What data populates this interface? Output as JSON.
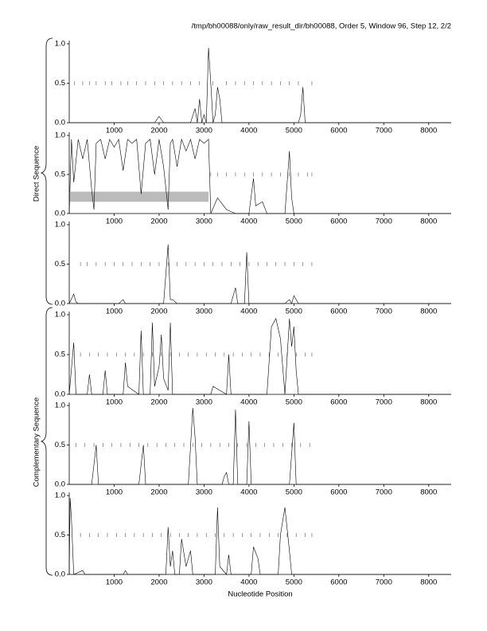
{
  "title": "/tmp/bh00088/only/raw_result_dir/bh00088, Order 5, Window 96, Step 12, 2/2",
  "xlabel": "Nucleotide Position",
  "groups": [
    "Direct Sequence",
    "Complementary Sequence"
  ],
  "chart_data": [
    {
      "type": "line",
      "color": "#000",
      "xlim": [
        0,
        8500
      ],
      "ylim": [
        0,
        1
      ],
      "xticks": [
        1000,
        2000,
        3000,
        4000,
        5000,
        6000,
        7000,
        8000
      ],
      "yticks": [
        {
          "value": 0,
          "label": "0.0"
        },
        {
          "value": 0.5,
          "label": "0.5"
        },
        {
          "value": 1,
          "label": "1.0"
        }
      ],
      "x": [
        0,
        1900,
        2000,
        2100,
        2700,
        2800,
        2850,
        2900,
        2950,
        3000,
        3050,
        3100,
        3150,
        3200,
        3250,
        3300,
        3350,
        3400,
        5100,
        5150,
        5200,
        5250,
        8500
      ],
      "values": [
        0,
        0,
        0.08,
        0,
        0,
        0.18,
        0,
        0.3,
        0,
        0.1,
        0,
        0.95,
        0.5,
        0,
        0.1,
        0.45,
        0.3,
        0,
        0,
        0.1,
        0.45,
        0,
        0
      ],
      "marks": {
        "y": 0.5,
        "x": [
          120,
          300,
          450,
          600,
          800,
          950,
          1150,
          1300,
          1500,
          1700,
          1900,
          2100,
          2300,
          2500,
          2700,
          2900,
          3200,
          3500,
          3700,
          3900,
          4100,
          4300,
          4500,
          4700,
          4900,
          5100,
          5400
        ]
      }
    },
    {
      "type": "line",
      "color": "#000",
      "xlim": [
        0,
        8500
      ],
      "ylim": [
        0,
        1
      ],
      "xticks": [
        1000,
        2000,
        3000,
        4000,
        5000,
        6000,
        7000,
        8000
      ],
      "yticks": [
        {
          "value": 0,
          "label": "0.0"
        },
        {
          "value": 0.5,
          "label": "0.5"
        },
        {
          "value": 1,
          "label": "1.0"
        }
      ],
      "x": [
        0,
        50,
        100,
        200,
        300,
        400,
        500,
        550,
        600,
        700,
        800,
        900,
        1000,
        1100,
        1200,
        1300,
        1400,
        1500,
        1600,
        1700,
        1800,
        1900,
        2000,
        2100,
        2200,
        2250,
        2300,
        2400,
        2500,
        2600,
        2700,
        2800,
        2900,
        3000,
        3100,
        3150,
        3300,
        3500,
        3700,
        4000,
        4100,
        4150,
        4300,
        4400,
        4800,
        4900,
        4950,
        5000,
        8500
      ],
      "values": [
        0,
        0.95,
        0.4,
        0.95,
        0.7,
        0.95,
        0.3,
        0.05,
        0.9,
        0.95,
        0.7,
        0.95,
        0.85,
        0.95,
        0.55,
        0.95,
        0.9,
        0.95,
        0.25,
        0.9,
        0.95,
        0.5,
        0.95,
        0.6,
        0.05,
        0.9,
        0.95,
        0.6,
        0.95,
        0.8,
        0.95,
        0.7,
        0.95,
        0.9,
        0.95,
        0,
        0.2,
        0.05,
        0,
        0,
        0.45,
        0.1,
        0.15,
        0,
        0,
        0.8,
        0.2,
        0,
        0
      ],
      "band": {
        "x": [
          0,
          3100
        ],
        "y": [
          0.15,
          0.28
        ]
      },
      "marks": {
        "y": 0.5,
        "x": [
          3150,
          3300,
          3500,
          3700,
          3900,
          4100,
          4300,
          4500,
          4700,
          4900,
          5100,
          5300,
          5400
        ]
      }
    },
    {
      "type": "line",
      "color": "#000",
      "xlim": [
        0,
        8500
      ],
      "ylim": [
        0,
        1
      ],
      "xticks": [
        1000,
        2000,
        3000,
        4000,
        5000,
        6000,
        7000,
        8000
      ],
      "yticks": [
        {
          "value": 0,
          "label": "0.0"
        },
        {
          "value": 0.5,
          "label": "0.5"
        },
        {
          "value": 1,
          "label": "1.0"
        }
      ],
      "x": [
        0,
        100,
        150,
        200,
        1100,
        1200,
        1250,
        2100,
        2200,
        2250,
        2300,
        2400,
        3600,
        3700,
        3750,
        3900,
        3950,
        4000,
        4800,
        4900,
        4950,
        5000,
        5100,
        8500
      ],
      "values": [
        0,
        0.12,
        0.02,
        0,
        0,
        0.05,
        0,
        0,
        0.75,
        0.05,
        0.05,
        0,
        0,
        0.2,
        0,
        0,
        0.65,
        0,
        0,
        0.05,
        0,
        0.1,
        0,
        0
      ],
      "marks": {
        "y": 0.5,
        "x": [
          250,
          400,
          600,
          800,
          1000,
          1200,
          1400,
          1600,
          1800,
          2000,
          2200,
          2400,
          2600,
          2800,
          3000,
          3200,
          3400,
          3600,
          3800,
          4000,
          4200,
          4400,
          4600,
          4800,
          5000,
          5200,
          5400
        ]
      }
    },
    {
      "type": "line",
      "color": "#000",
      "xlim": [
        0,
        8500
      ],
      "ylim": [
        0,
        1
      ],
      "xticks": [
        1000,
        2000,
        3000,
        4000,
        5000,
        6000,
        7000,
        8000
      ],
      "yticks": [
        {
          "value": 0,
          "label": "0.0"
        },
        {
          "value": 0.5,
          "label": "0.5"
        },
        {
          "value": 1,
          "label": "1.0"
        }
      ],
      "x": [
        0,
        100,
        150,
        400,
        450,
        500,
        750,
        800,
        850,
        1200,
        1250,
        1300,
        1550,
        1600,
        1650,
        1800,
        1850,
        1900,
        2000,
        2050,
        2100,
        2200,
        2250,
        2300,
        3150,
        3200,
        3500,
        3550,
        3600,
        4400,
        4500,
        4600,
        4700,
        4800,
        4900,
        4950,
        5000,
        5050,
        5100,
        8500
      ],
      "values": [
        0,
        0.65,
        0,
        0,
        0.25,
        0,
        0,
        0.3,
        0,
        0,
        0.4,
        0.1,
        0,
        0.8,
        0,
        0,
        0.9,
        0.1,
        0.35,
        0.75,
        0.2,
        0.05,
        0.9,
        0,
        0,
        0.1,
        0,
        0.5,
        0,
        0,
        0.85,
        0.95,
        0.7,
        0,
        0.95,
        0.6,
        0.85,
        0.3,
        0,
        0
      ],
      "marks": {
        "y": 0.5,
        "x": [
          250,
          450,
          650,
          850,
          1050,
          1250,
          1450,
          1650,
          1850,
          2050,
          2250,
          2450,
          2650,
          2850,
          3050,
          3250,
          3450,
          3650,
          3850,
          4050,
          4250,
          4450,
          4650,
          4850,
          5050,
          5250,
          5400
        ]
      }
    },
    {
      "type": "line",
      "color": "#000",
      "xlim": [
        0,
        8500
      ],
      "ylim": [
        0,
        1
      ],
      "xticks": [
        1000,
        2000,
        3000,
        4000,
        5000,
        6000,
        7000,
        8000
      ],
      "yticks": [
        {
          "value": 0,
          "label": "0.0"
        },
        {
          "value": 0.5,
          "label": "0.5"
        },
        {
          "value": 1,
          "label": "1.0"
        }
      ],
      "x": [
        0,
        500,
        600,
        650,
        1550,
        1650,
        1700,
        2650,
        2750,
        2800,
        2850,
        3400,
        3450,
        3500,
        3550,
        3650,
        3700,
        3750,
        3950,
        4000,
        4050,
        4900,
        5000,
        5050,
        8500
      ],
      "values": [
        0,
        0,
        0.5,
        0,
        0,
        0.5,
        0,
        0,
        0.97,
        0.6,
        0,
        0,
        0.1,
        0.15,
        0,
        0,
        0.95,
        0,
        0,
        0.8,
        0,
        0,
        0.78,
        0,
        0
      ],
      "marks": {
        "y": 0.5,
        "x": [
          150,
          350,
          550,
          750,
          950,
          1150,
          1350,
          1550,
          1750,
          1950,
          2150,
          2350,
          2550,
          2750,
          2950,
          3150,
          3350,
          3550,
          3750,
          3950,
          4150,
          4350,
          4550,
          4750,
          4950,
          5150,
          5350
        ]
      }
    },
    {
      "type": "line",
      "color": "#000",
      "xlim": [
        0,
        8500
      ],
      "ylim": [
        0,
        1
      ],
      "xticks": [
        1000,
        2000,
        3000,
        4000,
        5000,
        6000,
        7000,
        8000
      ],
      "yticks": [
        {
          "value": 0,
          "label": "0.0"
        },
        {
          "value": 0.5,
          "label": "0.5"
        },
        {
          "value": 1,
          "label": "1.0"
        }
      ],
      "x": [
        0,
        20,
        50,
        100,
        300,
        350,
        1200,
        1250,
        1300,
        2150,
        2200,
        2250,
        2300,
        2350,
        2450,
        2500,
        2600,
        2700,
        2750,
        3250,
        3300,
        3350,
        3500,
        3550,
        3600,
        4050,
        4100,
        4200,
        4250,
        4650,
        4700,
        4800,
        4900,
        4950,
        8500
      ],
      "values": [
        0,
        0.97,
        0.7,
        0,
        0.05,
        0,
        0,
        0.05,
        0,
        0,
        0.6,
        0.1,
        0.3,
        0,
        0,
        0.45,
        0.1,
        0.3,
        0,
        0,
        0.85,
        0.1,
        0,
        0.25,
        0,
        0,
        0.35,
        0.2,
        0,
        0,
        0.5,
        0.85,
        0.3,
        0,
        0
      ],
      "marks": {
        "y": 0.5,
        "x": [
          250,
          450,
          650,
          850,
          1050,
          1250,
          1450,
          1650,
          1850,
          2050,
          2250,
          2450,
          2650,
          2850,
          3050,
          3250,
          3450,
          3650,
          3850,
          4050,
          4250,
          4450,
          4650,
          4850,
          5050,
          5250,
          5400
        ]
      }
    }
  ]
}
